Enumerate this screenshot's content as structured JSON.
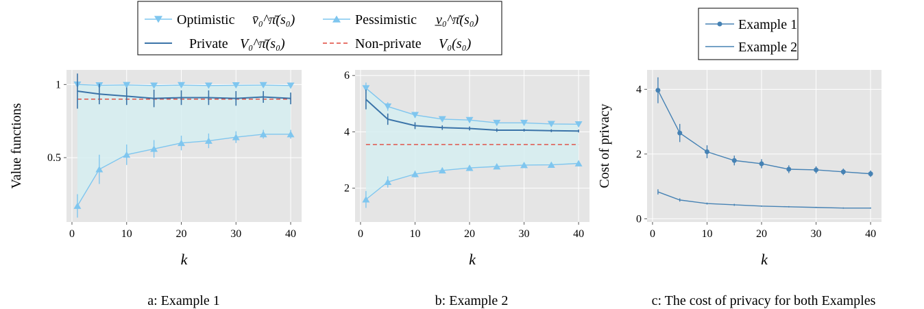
{
  "colors": {
    "optimistic": "#7fc6ef",
    "pessimistic": "#7fc6ef",
    "private": "#3a73a8",
    "nonprivate": "#e0453a",
    "band": "#d6eef1",
    "plot_bg": "#e5e5e5",
    "grid": "#ffffff",
    "example1": "#4682b4",
    "example2": "#4682b4"
  },
  "legend_a": {
    "optimistic_label": "Optimistic",
    "optimistic_math": "v̄₀^π̄(s₀)",
    "pessimistic_label": "Pessimistic",
    "pessimistic_math": "v̲₀^π̄(s₀)",
    "private_label": "Private",
    "private_math": "V₀^π̄(s₀)",
    "nonprivate_label": "Non-private",
    "nonprivate_math": "V₀(s₀)"
  },
  "legend_c": {
    "example1": "Example 1",
    "example2": "Example 2"
  },
  "captions": {
    "a": "a: Example 1",
    "b": "b: Example 2",
    "c": "c: The cost of privacy for both Examples"
  },
  "chart_data": [
    {
      "type": "line",
      "xlabel": "k",
      "ylabel": "Value functions",
      "xlim": [
        -1,
        42
      ],
      "ylim": [
        0.06,
        1.1
      ],
      "xticks": [
        0,
        10,
        20,
        30,
        40
      ],
      "yticks": [
        0.5,
        1
      ],
      "ytick_labels": [
        "0.5",
        "1"
      ],
      "grid": true,
      "x": [
        1,
        5,
        10,
        15,
        20,
        25,
        30,
        35,
        40
      ],
      "series": [
        {
          "name": "Optimistic",
          "values": [
            1.0,
            0.995,
            0.997,
            0.993,
            0.996,
            0.993,
            0.995,
            0.996,
            0.993
          ],
          "err": [
            0.01,
            0.01,
            0.01,
            0.01,
            0.01,
            0.01,
            0.01,
            0.01,
            0.01
          ]
        },
        {
          "name": "Pessimistic",
          "values": [
            0.17,
            0.42,
            0.52,
            0.56,
            0.6,
            0.615,
            0.64,
            0.66,
            0.66
          ],
          "err": [
            0.08,
            0.1,
            0.07,
            0.06,
            0.05,
            0.05,
            0.04,
            0.03,
            0.03
          ]
        },
        {
          "name": "Private",
          "values": [
            0.955,
            0.935,
            0.92,
            0.905,
            0.91,
            0.91,
            0.905,
            0.915,
            0.905
          ],
          "err": [
            0.12,
            0.07,
            0.06,
            0.06,
            0.05,
            0.05,
            0.05,
            0.04,
            0.04
          ]
        },
        {
          "name": "Non-private",
          "values": [
            0.9,
            0.9,
            0.9,
            0.9,
            0.9,
            0.9,
            0.9,
            0.9,
            0.9
          ]
        }
      ]
    },
    {
      "type": "line",
      "xlabel": "k",
      "ylabel": "",
      "xlim": [
        -1,
        42
      ],
      "ylim": [
        0.8,
        6.2
      ],
      "xticks": [
        0,
        10,
        20,
        30,
        40
      ],
      "yticks": [
        2,
        4,
        6
      ],
      "ytick_labels": [
        "2",
        "4",
        "6"
      ],
      "grid": true,
      "x": [
        1,
        5,
        10,
        15,
        20,
        25,
        30,
        35,
        40
      ],
      "series": [
        {
          "name": "Optimistic",
          "values": [
            5.55,
            4.9,
            4.6,
            4.45,
            4.42,
            4.32,
            4.32,
            4.28,
            4.27
          ],
          "err": [
            0.2,
            0.15,
            0.1,
            0.08,
            0.08,
            0.06,
            0.06,
            0.05,
            0.05
          ]
        },
        {
          "name": "Pessimistic",
          "values": [
            1.6,
            2.22,
            2.5,
            2.63,
            2.72,
            2.77,
            2.82,
            2.83,
            2.88
          ],
          "err": [
            0.3,
            0.2,
            0.12,
            0.1,
            0.08,
            0.07,
            0.06,
            0.05,
            0.05
          ]
        },
        {
          "name": "Private",
          "values": [
            5.15,
            4.45,
            4.22,
            4.15,
            4.12,
            4.06,
            4.06,
            4.04,
            4.03
          ],
          "err": [
            0.35,
            0.2,
            0.12,
            0.08,
            0.07,
            0.06,
            0.05,
            0.05,
            0.05
          ]
        },
        {
          "name": "Non-private",
          "values": [
            3.55,
            3.55,
            3.55,
            3.55,
            3.55,
            3.55,
            3.55,
            3.55,
            3.55
          ]
        }
      ]
    },
    {
      "type": "line",
      "xlabel": "k",
      "ylabel": "Cost of privacy",
      "xlim": [
        -1,
        42
      ],
      "ylim": [
        -0.1,
        4.6
      ],
      "xticks": [
        0,
        10,
        20,
        30,
        40
      ],
      "yticks": [
        0,
        2,
        4
      ],
      "ytick_labels": [
        "0",
        "2",
        "4"
      ],
      "grid": true,
      "x": [
        1,
        5,
        10,
        15,
        20,
        25,
        30,
        35,
        40
      ],
      "series": [
        {
          "name": "Example 1",
          "values": [
            3.97,
            2.65,
            2.07,
            1.8,
            1.7,
            1.53,
            1.51,
            1.45,
            1.39
          ],
          "err": [
            0.4,
            0.28,
            0.2,
            0.15,
            0.14,
            0.12,
            0.11,
            0.1,
            0.1
          ]
        },
        {
          "name": "Example 2",
          "values": [
            0.83,
            0.58,
            0.47,
            0.43,
            0.39,
            0.37,
            0.35,
            0.33,
            0.33
          ],
          "err": [
            0.08,
            0.05,
            0.03,
            0.03,
            0.02,
            0.02,
            0.02,
            0.02,
            0.02
          ]
        }
      ]
    }
  ]
}
